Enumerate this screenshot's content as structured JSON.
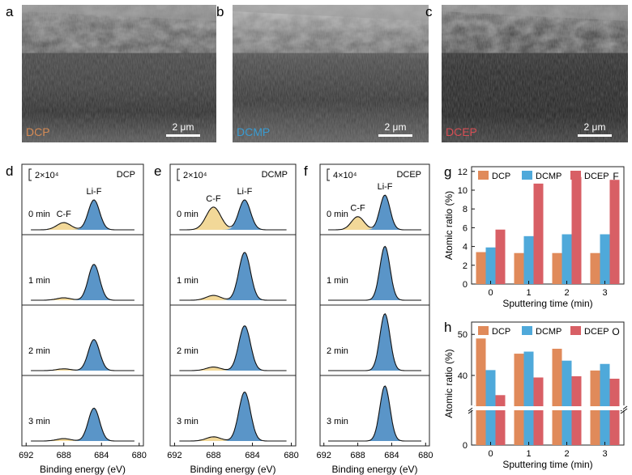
{
  "sem": [
    {
      "letter": "a",
      "name": "DCP",
      "color": "#d48a55",
      "scale": "2 μm"
    },
    {
      "letter": "b",
      "name": "DCMP",
      "color": "#3a9bd1",
      "scale": "2 μm"
    },
    {
      "letter": "c",
      "name": "DCEP",
      "color": "#d64f55",
      "scale": "2 μm"
    }
  ],
  "xps": {
    "xlabel": "Binding energy (eV)",
    "ticks": [
      "692",
      "688",
      "684",
      "680"
    ],
    "times": [
      "0 min",
      "1 min",
      "2 min",
      "3 min"
    ],
    "peak_cf": "C-F",
    "peak_lif": "Li-F",
    "colors": {
      "lif": "#5a95c8",
      "cf": "#f2d898"
    },
    "panels": [
      {
        "letter": "d",
        "name": "DCP",
        "scalebar": "2×10⁴",
        "lif_heights": [
          0.5,
          0.6,
          0.52,
          0.55
        ],
        "cf_heights": [
          0.12,
          0.04,
          0.03,
          0.04
        ]
      },
      {
        "letter": "e",
        "name": "DCMP",
        "scalebar": "2×10⁴",
        "lif_heights": [
          0.5,
          0.8,
          0.75,
          0.82
        ],
        "cf_heights": [
          0.38,
          0.08,
          0.06,
          0.07
        ]
      },
      {
        "letter": "f",
        "name": "DCEP",
        "scalebar": "4×10⁴",
        "lif_heights": [
          0.58,
          0.9,
          0.95,
          0.92
        ],
        "cf_heights": [
          0.22,
          0.0,
          0.0,
          0.0
        ]
      }
    ]
  },
  "chart_data": [
    {
      "type": "bar",
      "letter": "g",
      "element": "F",
      "categories": [
        "0",
        "1",
        "2",
        "3"
      ],
      "series": [
        {
          "name": "DCP",
          "color": "#e08a5a",
          "values": [
            3.4,
            3.3,
            3.3,
            3.3
          ]
        },
        {
          "name": "DCMP",
          "color": "#4fa9da",
          "values": [
            3.9,
            5.1,
            5.3,
            5.3
          ]
        },
        {
          "name": "DCEP",
          "color": "#d85f65",
          "values": [
            5.8,
            10.7,
            11.4,
            11.1
          ]
        }
      ],
      "xlabel": "Sputtering time (min)",
      "ylabel": "Atomic ratio (%)",
      "ylim": [
        0,
        12.5
      ],
      "yticks": [
        "0",
        "2",
        "4",
        "6",
        "8",
        "10",
        "12"
      ],
      "legend": "top"
    },
    {
      "type": "bar",
      "letter": "h",
      "element": "O",
      "categories": [
        "0",
        "1",
        "2",
        "3"
      ],
      "series": [
        {
          "name": "DCP",
          "color": "#e08a5a",
          "values": [
            49,
            45.3,
            46.5,
            41.2
          ]
        },
        {
          "name": "DCMP",
          "color": "#4fa9da",
          "values": [
            41.3,
            45.8,
            43.6,
            42.8
          ]
        },
        {
          "name": "DCEP",
          "color": "#d85f65",
          "values": [
            35.2,
            39.5,
            39.8,
            39.2
          ]
        }
      ],
      "xlabel": "Sputtering time (min)",
      "ylabel": "Atomic ratio (%)",
      "yticks": [
        "0",
        "40",
        "50"
      ],
      "axis_break": true,
      "legend": "top"
    }
  ]
}
